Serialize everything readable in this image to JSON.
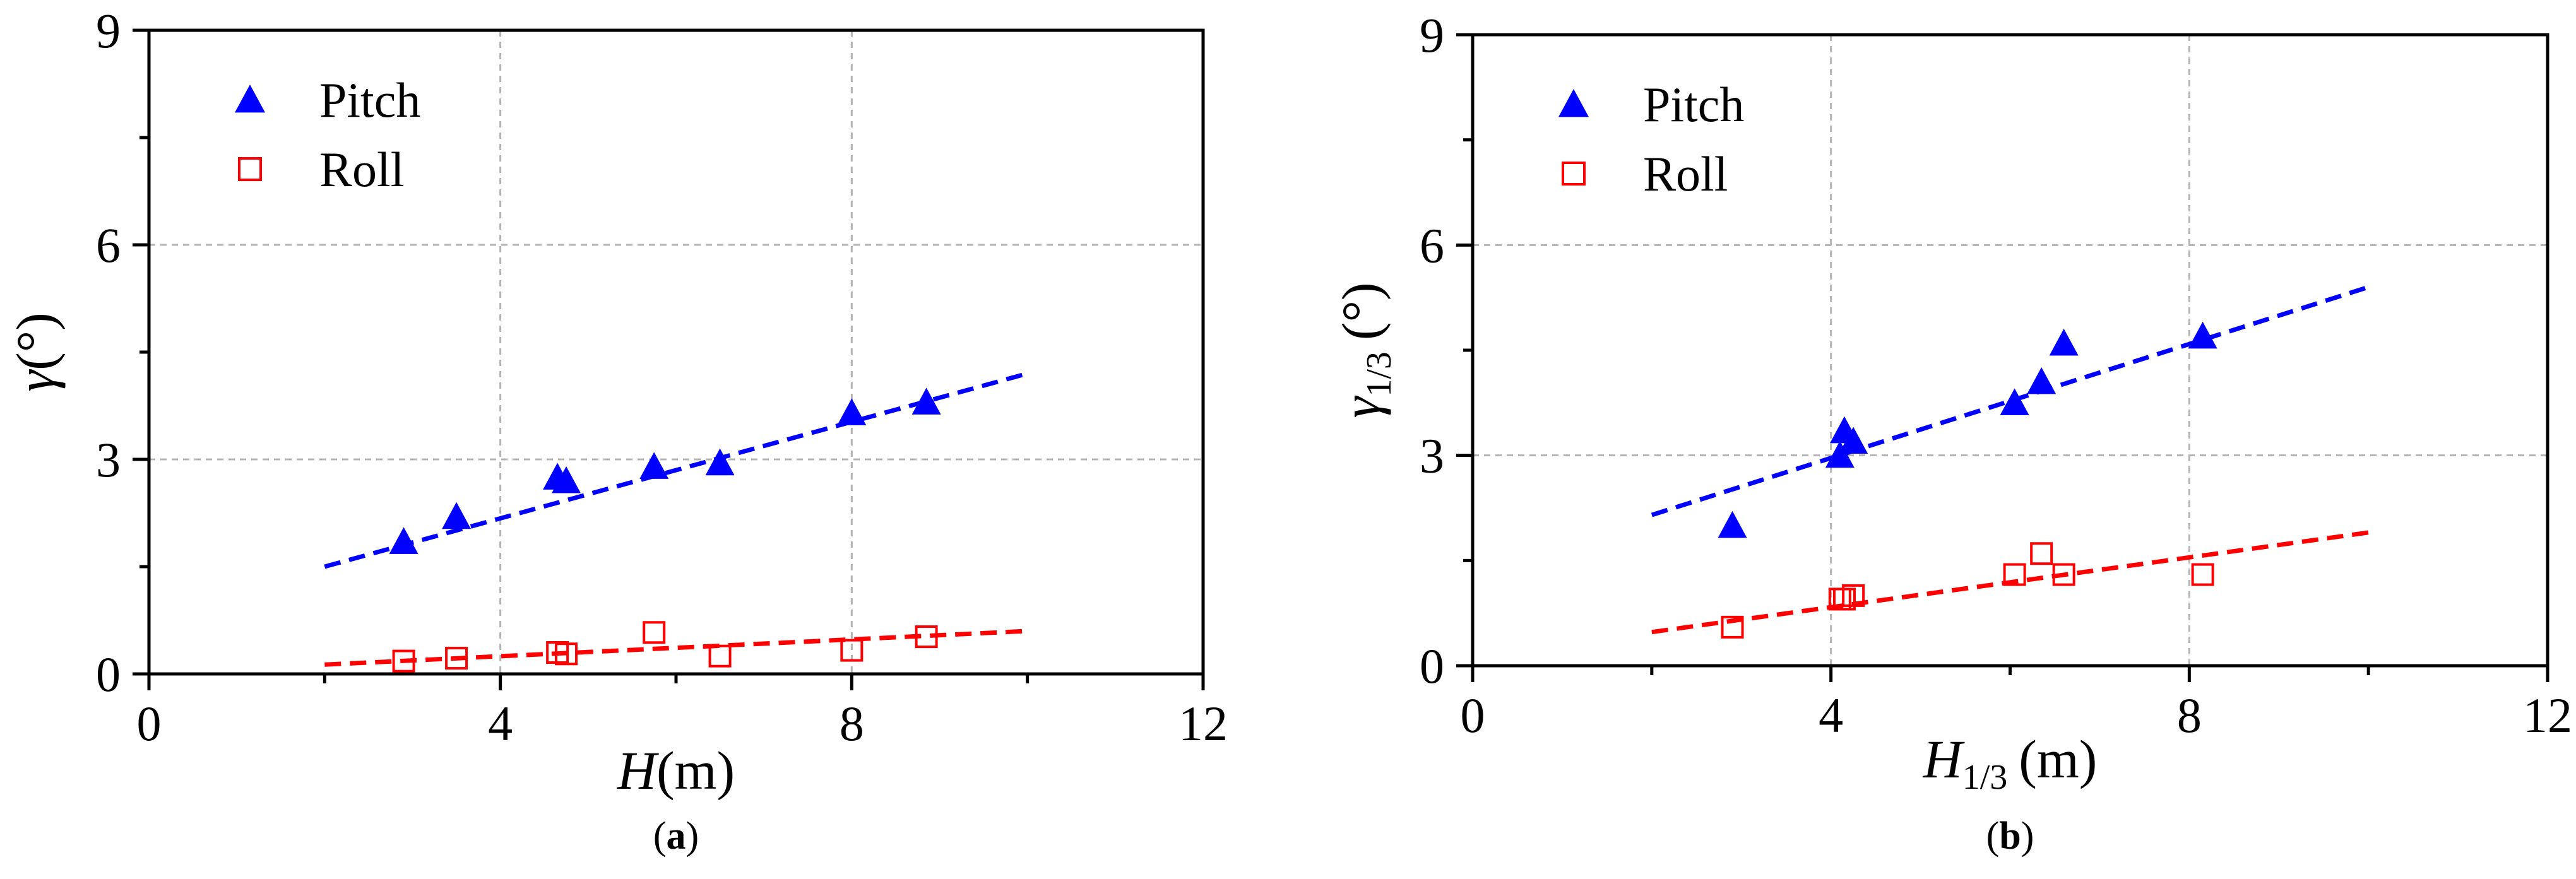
{
  "colors": {
    "pitch": "#0000ff",
    "roll": "#ff0000",
    "grid": "#b4b4b4",
    "axis": "#000000"
  },
  "chart_data": [
    {
      "id": "a",
      "type": "scatter",
      "panel_label": "a",
      "ylabel": {
        "base": "γ",
        "sub": "",
        "unit": "(°)"
      },
      "xlabel": {
        "base": "H",
        "sub": "",
        "unit": "(m)"
      },
      "xlim": [
        0,
        12
      ],
      "ylim": [
        0,
        9
      ],
      "xticks": [
        0,
        4,
        8,
        12
      ],
      "yticks": [
        0,
        3,
        6,
        9
      ],
      "grid": true,
      "legend_position": "top-left",
      "series": [
        {
          "name": "Pitch",
          "marker": "filled-triangle",
          "color": "#0000ff",
          "points": [
            [
              2.9,
              1.85
            ],
            [
              3.5,
              2.2
            ],
            [
              4.65,
              2.75
            ],
            [
              4.75,
              2.7
            ],
            [
              5.75,
              2.9
            ],
            [
              6.5,
              2.95
            ],
            [
              8.0,
              3.65
            ],
            [
              8.85,
              3.8
            ]
          ],
          "trend": [
            [
              2.0,
              1.5
            ],
            [
              10.0,
              4.2
            ]
          ]
        },
        {
          "name": "Roll",
          "marker": "open-square",
          "color": "#ff0000",
          "points": [
            [
              2.9,
              0.18
            ],
            [
              3.5,
              0.22
            ],
            [
              4.65,
              0.3
            ],
            [
              4.75,
              0.28
            ],
            [
              5.75,
              0.58
            ],
            [
              6.5,
              0.25
            ],
            [
              8.0,
              0.33
            ],
            [
              8.85,
              0.52
            ]
          ],
          "trend": [
            [
              2.0,
              0.13
            ],
            [
              10.0,
              0.6
            ]
          ]
        }
      ]
    },
    {
      "id": "b",
      "type": "scatter",
      "panel_label": "b",
      "ylabel": {
        "base": "γ",
        "sub": "1/3",
        "unit": "(°)"
      },
      "xlabel": {
        "base": "H",
        "sub": "1/3",
        "unit": "(m)"
      },
      "xlim": [
        0,
        12
      ],
      "ylim": [
        0,
        9
      ],
      "xticks": [
        0,
        4,
        8,
        12
      ],
      "yticks": [
        0,
        3,
        6,
        9
      ],
      "grid": true,
      "legend_position": "top-left",
      "series": [
        {
          "name": "Pitch",
          "marker": "filled-triangle",
          "color": "#0000ff",
          "points": [
            [
              2.9,
              2.0
            ],
            [
              4.1,
              3.0
            ],
            [
              4.15,
              3.35
            ],
            [
              4.25,
              3.2
            ],
            [
              6.05,
              3.75
            ],
            [
              6.35,
              4.05
            ],
            [
              6.6,
              4.6
            ],
            [
              8.15,
              4.7
            ]
          ],
          "trend": [
            [
              2.0,
              2.15
            ],
            [
              10.0,
              5.4
            ]
          ]
        },
        {
          "name": "Roll",
          "marker": "open-square",
          "color": "#ff0000",
          "points": [
            [
              2.9,
              0.55
            ],
            [
              4.1,
              0.95
            ],
            [
              4.15,
              0.95
            ],
            [
              4.25,
              1.0
            ],
            [
              6.05,
              1.3
            ],
            [
              6.35,
              1.6
            ],
            [
              6.6,
              1.3
            ],
            [
              8.15,
              1.3
            ]
          ],
          "trend": [
            [
              2.0,
              0.48
            ],
            [
              10.0,
              1.9
            ]
          ]
        }
      ]
    }
  ]
}
